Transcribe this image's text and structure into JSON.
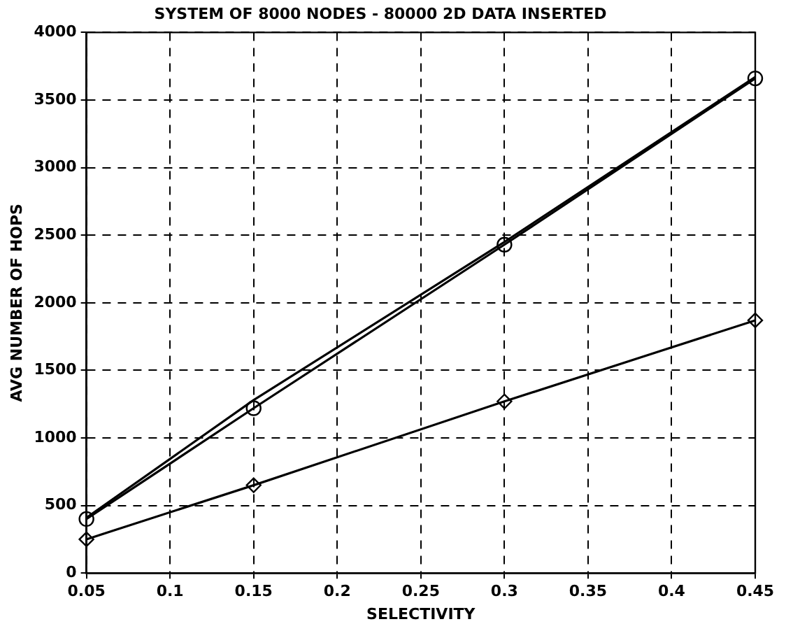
{
  "chart_data": {
    "type": "line",
    "title": "SYSTEM OF 8000 NODES - 80000 2D DATA INSERTED",
    "xlabel": "SELECTIVITY",
    "ylabel": "AVG NUMBER OF HOPS",
    "x": [
      0.05,
      0.15,
      0.3,
      0.45
    ],
    "series": [
      {
        "color": "#000000",
        "values": [
          400,
          1220,
          2430,
          3660
        ]
      },
      {
        "color": "#000000",
        "values": [
          410,
          1280,
          2450,
          3670
        ],
        "marker": "none"
      },
      {
        "color": "#000000",
        "values": [
          250,
          650,
          1270,
          1870
        ],
        "marker": "diamond"
      }
    ],
    "xlim": [
      0.05,
      0.45
    ],
    "xticks": [
      0.05,
      0.1,
      0.15,
      0.2,
      0.25,
      0.3,
      0.35,
      0.4,
      0.45
    ],
    "ylim": [
      0,
      4000
    ],
    "yticks": [
      0,
      500,
      1000,
      1500,
      2000,
      2500,
      3000,
      3500,
      4000
    ],
    "grid": true,
    "legend": false,
    "line_style": "solid",
    "marker": "circle"
  }
}
